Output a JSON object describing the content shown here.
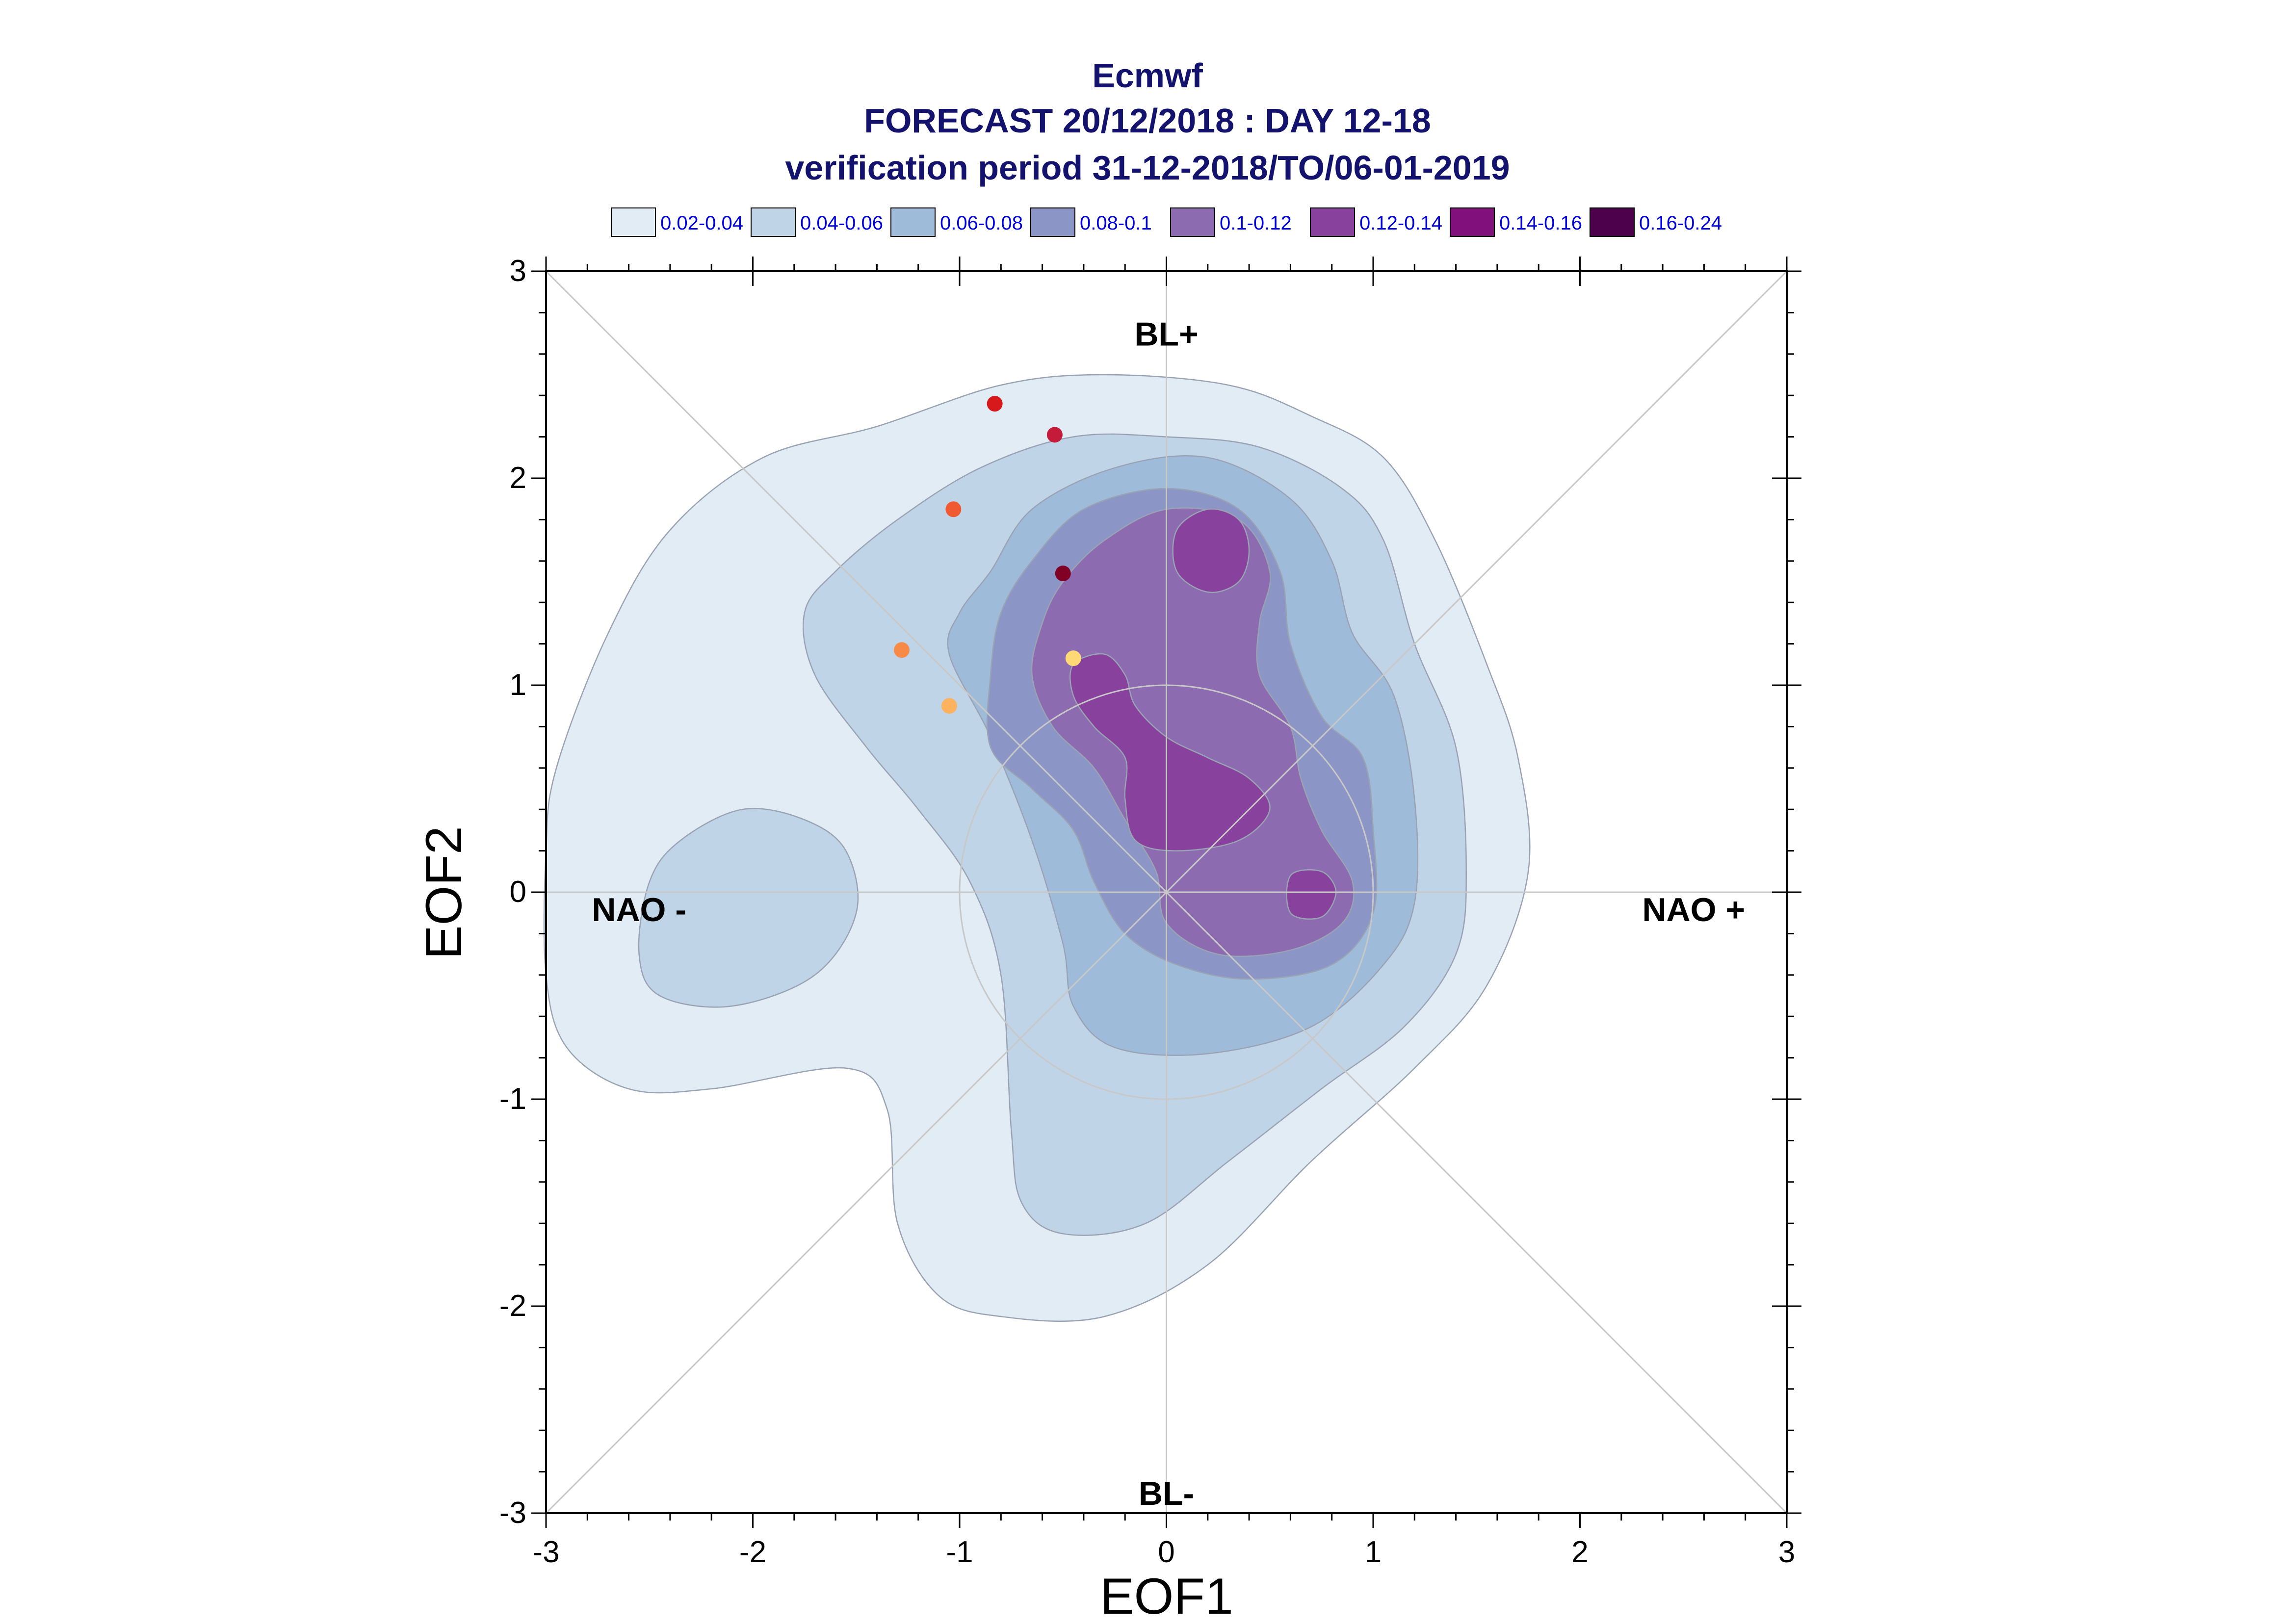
{
  "chart_data": {
    "type": "contour",
    "title": "Ecmwf",
    "subtitle_lines": [
      "FORECAST 20/12/2018 : DAY 12-18",
      "verification period 31-12-2018/TO/06-01-2019"
    ],
    "xlabel": "EOF1",
    "ylabel": "EOF2",
    "xlim": [
      -3,
      3
    ],
    "ylim": [
      -3,
      3
    ],
    "x_ticks": [
      "-3",
      "-2",
      "-1",
      "0",
      "1",
      "2",
      "3"
    ],
    "y_ticks": [
      "-3",
      "-2",
      "-1",
      "0",
      "1",
      "2",
      "3"
    ],
    "grid": false,
    "reference_circle_radius": 1,
    "diagonals": true,
    "regime_labels": [
      {
        "text": "BL+",
        "x": 0,
        "y": 2.7
      },
      {
        "text": "BL-",
        "x": 0,
        "y": -2.9
      },
      {
        "text": "NAO -",
        "x": -2.55,
        "y": -0.08
      },
      {
        "text": "NAO +",
        "x": 2.55,
        "y": -0.08
      }
    ],
    "legend": {
      "placement": "top",
      "entries": [
        {
          "label": "0.02-0.04",
          "color": "#e1ecf4"
        },
        {
          "label": "0.04-0.06",
          "color": "#bfd4e6"
        },
        {
          "label": "0.06-0.08",
          "color": "#9ebcd9"
        },
        {
          "label": "0.08-0.1",
          "color": "#8c96c6"
        },
        {
          "label": "0.1-0.12",
          "color": "#8c6bb1"
        },
        {
          "label": "0.12-0.14",
          "color": "#88419d"
        },
        {
          "label": "0.14-0.16",
          "color": "#810f7c"
        },
        {
          "label": "0.16-0.24",
          "color": "#4d004b"
        }
      ]
    },
    "contours": [
      {
        "level": "0.02-0.04",
        "color": "#e1ecf4",
        "polygons": [
          [
            [
              -3.0,
              -0.4
            ],
            [
              -2.9,
              -0.75
            ],
            [
              -2.6,
              -0.95
            ],
            [
              -2.2,
              -0.95
            ],
            [
              -1.55,
              -0.85
            ],
            [
              -1.35,
              -1.05
            ],
            [
              -1.3,
              -1.6
            ],
            [
              -1.1,
              -1.95
            ],
            [
              -0.8,
              -2.05
            ],
            [
              -0.3,
              -2.05
            ],
            [
              0.2,
              -1.8
            ],
            [
              0.7,
              -1.3
            ],
            [
              1.2,
              -0.85
            ],
            [
              1.55,
              -0.45
            ],
            [
              1.75,
              0.1
            ],
            [
              1.7,
              0.65
            ],
            [
              1.55,
              1.1
            ],
            [
              1.3,
              1.7
            ],
            [
              1.05,
              2.1
            ],
            [
              0.7,
              2.3
            ],
            [
              0.3,
              2.45
            ],
            [
              -0.3,
              2.5
            ],
            [
              -0.8,
              2.45
            ],
            [
              -1.4,
              2.25
            ],
            [
              -1.95,
              2.1
            ],
            [
              -2.4,
              1.75
            ],
            [
              -2.7,
              1.25
            ],
            [
              -2.95,
              0.6
            ],
            [
              -3.0,
              0.2
            ]
          ]
        ]
      },
      {
        "level": "0.04-0.06",
        "color": "#bfd4e6",
        "polygons": [
          [
            [
              -1.75,
              1.35
            ],
            [
              -1.7,
              1.05
            ],
            [
              -1.45,
              0.7
            ],
            [
              -1.2,
              0.4
            ],
            [
              -0.95,
              0.05
            ],
            [
              -0.8,
              -0.4
            ],
            [
              -0.75,
              -1.15
            ],
            [
              -0.7,
              -1.5
            ],
            [
              -0.5,
              -1.65
            ],
            [
              -0.1,
              -1.6
            ],
            [
              0.3,
              -1.3
            ],
            [
              0.75,
              -0.95
            ],
            [
              1.15,
              -0.65
            ],
            [
              1.4,
              -0.3
            ],
            [
              1.45,
              0.1
            ],
            [
              1.4,
              0.7
            ],
            [
              1.2,
              1.2
            ],
            [
              1.05,
              1.7
            ],
            [
              0.85,
              1.95
            ],
            [
              0.45,
              2.15
            ],
            [
              0.0,
              2.2
            ],
            [
              -0.45,
              2.2
            ],
            [
              -0.9,
              2.05
            ],
            [
              -1.3,
              1.8
            ],
            [
              -1.6,
              1.55
            ]
          ],
          [
            [
              -2.55,
              -0.3
            ],
            [
              -2.45,
              -0.5
            ],
            [
              -2.1,
              -0.55
            ],
            [
              -1.7,
              -0.4
            ],
            [
              -1.5,
              -0.1
            ],
            [
              -1.55,
              0.2
            ],
            [
              -1.75,
              0.35
            ],
            [
              -2.05,
              0.4
            ],
            [
              -2.35,
              0.25
            ],
            [
              -2.5,
              0.05
            ]
          ]
        ]
      },
      {
        "level": "0.06-0.08",
        "color": "#9ebcd9",
        "polygons": [
          [
            [
              -1.05,
              1.15
            ],
            [
              -0.85,
              0.75
            ],
            [
              -0.65,
              0.25
            ],
            [
              -0.5,
              -0.25
            ],
            [
              -0.45,
              -0.55
            ],
            [
              -0.25,
              -0.75
            ],
            [
              0.2,
              -0.78
            ],
            [
              0.7,
              -0.65
            ],
            [
              1.05,
              -0.35
            ],
            [
              1.2,
              -0.05
            ],
            [
              1.2,
              0.45
            ],
            [
              1.1,
              0.95
            ],
            [
              0.9,
              1.25
            ],
            [
              0.8,
              1.6
            ],
            [
              0.6,
              1.9
            ],
            [
              0.2,
              2.1
            ],
            [
              -0.25,
              2.05
            ],
            [
              -0.65,
              1.85
            ],
            [
              -0.85,
              1.55
            ],
            [
              -1.0,
              1.35
            ]
          ]
        ]
      },
      {
        "level": "0.08-0.1",
        "color": "#8c96c6",
        "polygons": [
          [
            [
              -0.85,
              1.05
            ],
            [
              -0.85,
              0.7
            ],
            [
              -0.65,
              0.5
            ],
            [
              -0.45,
              0.3
            ],
            [
              -0.35,
              0.05
            ],
            [
              -0.2,
              -0.2
            ],
            [
              0.05,
              -0.35
            ],
            [
              0.4,
              -0.42
            ],
            [
              0.8,
              -0.35
            ],
            [
              1.0,
              -0.1
            ],
            [
              1.0,
              0.3
            ],
            [
              0.95,
              0.65
            ],
            [
              0.75,
              0.85
            ],
            [
              0.6,
              1.2
            ],
            [
              0.55,
              1.55
            ],
            [
              0.35,
              1.85
            ],
            [
              0.0,
              1.95
            ],
            [
              -0.4,
              1.85
            ],
            [
              -0.65,
              1.6
            ],
            [
              -0.8,
              1.35
            ]
          ]
        ]
      },
      {
        "level": "0.1-0.12",
        "color": "#8c6bb1",
        "polygons": [
          [
            [
              -0.65,
              1.05
            ],
            [
              -0.55,
              0.8
            ],
            [
              -0.35,
              0.6
            ],
            [
              -0.2,
              0.35
            ],
            [
              -0.05,
              0.1
            ],
            [
              0.0,
              -0.15
            ],
            [
              0.25,
              -0.3
            ],
            [
              0.6,
              -0.28
            ],
            [
              0.85,
              -0.15
            ],
            [
              0.9,
              0.05
            ],
            [
              0.75,
              0.3
            ],
            [
              0.65,
              0.55
            ],
            [
              0.6,
              0.8
            ],
            [
              0.45,
              1.05
            ],
            [
              0.45,
              1.3
            ],
            [
              0.5,
              1.55
            ],
            [
              0.35,
              1.8
            ],
            [
              0.0,
              1.85
            ],
            [
              -0.3,
              1.7
            ],
            [
              -0.5,
              1.5
            ],
            [
              -0.6,
              1.3
            ]
          ]
        ]
      },
      {
        "level": "0.12-0.14",
        "color": "#88419d",
        "polygons": [
          [
            [
              -0.45,
              0.95
            ],
            [
              -0.35,
              0.8
            ],
            [
              -0.2,
              0.65
            ],
            [
              -0.2,
              0.45
            ],
            [
              -0.15,
              0.25
            ],
            [
              0.05,
              0.2
            ],
            [
              0.35,
              0.25
            ],
            [
              0.5,
              0.4
            ],
            [
              0.4,
              0.55
            ],
            [
              0.2,
              0.65
            ],
            [
              0.0,
              0.75
            ],
            [
              -0.15,
              0.9
            ],
            [
              -0.2,
              1.05
            ],
            [
              -0.3,
              1.15
            ],
            [
              -0.45,
              1.1
            ]
          ],
          [
            [
              0.2,
              1.85
            ],
            [
              0.35,
              1.8
            ],
            [
              0.4,
              1.65
            ],
            [
              0.35,
              1.5
            ],
            [
              0.2,
              1.45
            ],
            [
              0.05,
              1.55
            ],
            [
              0.05,
              1.75
            ]
          ],
          [
            [
              0.6,
              -0.1
            ],
            [
              0.75,
              -0.12
            ],
            [
              0.82,
              0.0
            ],
            [
              0.75,
              0.1
            ],
            [
              0.6,
              0.08
            ]
          ]
        ]
      }
    ],
    "points": [
      {
        "x": -0.83,
        "y": 2.36,
        "color": "#d7191c"
      },
      {
        "x": -0.54,
        "y": 2.21,
        "color": "#c51b3a"
      },
      {
        "x": -1.03,
        "y": 1.85,
        "color": "#f05a32"
      },
      {
        "x": -0.5,
        "y": 1.54,
        "color": "#800026"
      },
      {
        "x": -1.28,
        "y": 1.17,
        "color": "#f88a48"
      },
      {
        "x": -0.45,
        "y": 1.13,
        "color": "#fed976"
      },
      {
        "x": -1.05,
        "y": 0.9,
        "color": "#fdb260"
      }
    ]
  }
}
